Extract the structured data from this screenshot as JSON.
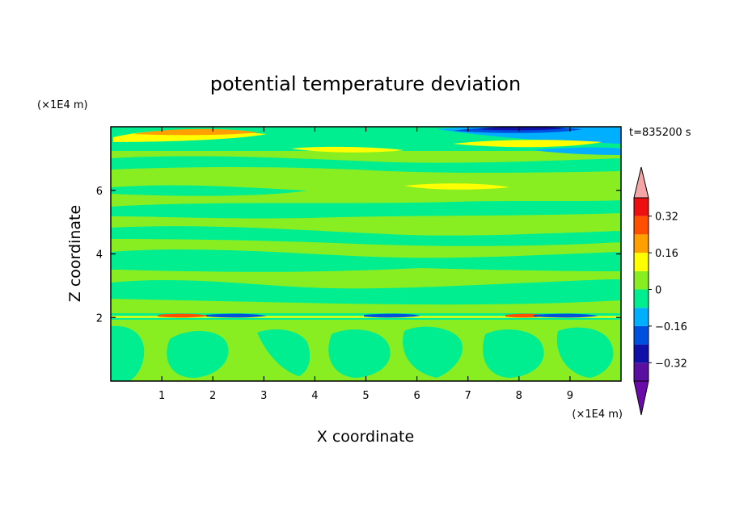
{
  "chart_data": {
    "type": "heatmap",
    "title": "potential temperature deviation",
    "xlabel": "X coordinate",
    "ylabel": "Z coordinate",
    "x_unit": "(×1E4 m)",
    "y_unit": "(×1E4 m)",
    "time_label": "t=835200 s",
    "xlim": [
      0,
      10
    ],
    "ylim": [
      0,
      8
    ],
    "x_ticks": [
      1,
      2,
      3,
      4,
      5,
      6,
      7,
      8,
      9
    ],
    "y_ticks": [
      2,
      4,
      6
    ],
    "colorbar": {
      "levels": [
        -0.4,
        -0.32,
        -0.24,
        -0.16,
        -0.08,
        0,
        0.08,
        0.16,
        0.24,
        0.32,
        0.4
      ],
      "colors": [
        "#5a0fa0",
        "#1010a8",
        "#0050e0",
        "#00b0ff",
        "#00ee90",
        "#88ee22",
        "#ffff00",
        "#ffa000",
        "#ff5000",
        "#ee1010"
      ],
      "under_color": "#6a0aa8",
      "over_color": "#f4a6a6",
      "tick_labels": [
        "0.32",
        "0.16",
        "0",
        "−0.16",
        "−0.32"
      ],
      "tick_values": [
        0.32,
        0.16,
        0,
        -0.16,
        -0.32
      ]
    }
  }
}
